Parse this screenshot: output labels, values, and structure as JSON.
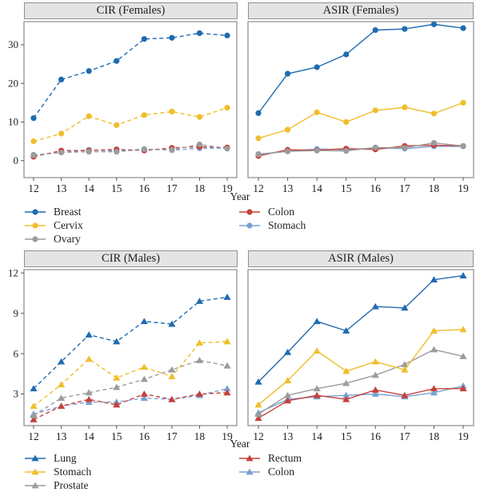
{
  "x_axis_label": "Year",
  "years": [
    12,
    13,
    14,
    15,
    16,
    17,
    18,
    19
  ],
  "colors": {
    "blue": "#1f6bb0",
    "gold": "#efbe2b",
    "gray": "#9c9c9c",
    "red": "#c5413b",
    "lightblue": "#79a1d3",
    "panel_header_bg": "#e4e4e4",
    "panel_header_border": "#919191",
    "panel_border": "#8a8a8a",
    "tick": "#555555",
    "text": "#1f1f1f"
  },
  "chart_data": [
    {
      "id": "cir_females",
      "type": "line",
      "title": "CIR (Females)",
      "line_style": "dashed",
      "marker": "circle",
      "xlabel": "Year",
      "x": [
        12,
        13,
        14,
        15,
        16,
        17,
        18,
        19
      ],
      "ylim": [
        -4.4,
        36.0
      ],
      "yticks": [
        0,
        10,
        20,
        30
      ],
      "grid": false,
      "series": [
        {
          "name": "Breast",
          "color_key": "blue",
          "values": [
            11.0,
            21.0,
            23.2,
            25.8,
            31.5,
            31.8,
            33.0,
            32.4
          ]
        },
        {
          "name": "Cervix",
          "color_key": "gold",
          "values": [
            5.0,
            7.0,
            11.5,
            9.2,
            11.8,
            12.7,
            11.3,
            13.7
          ]
        },
        {
          "name": "Ovary",
          "color_key": "gray",
          "values": [
            1.4,
            2.1,
            2.3,
            2.3,
            2.9,
            2.8,
            4.2,
            3.1
          ]
        },
        {
          "name": "Colon",
          "color_key": "red",
          "values": [
            1.0,
            2.6,
            2.6,
            2.9,
            2.6,
            3.3,
            3.6,
            3.4
          ]
        },
        {
          "name": "Stomach",
          "color_key": "lightblue",
          "values": [
            1.5,
            2.1,
            2.8,
            2.5,
            3.0,
            2.7,
            3.2,
            3.2
          ]
        }
      ]
    },
    {
      "id": "asir_females",
      "type": "line",
      "title": "ASIR (Females)",
      "line_style": "solid",
      "marker": "circle",
      "xlabel": "Year",
      "x": [
        12,
        13,
        14,
        15,
        16,
        17,
        18,
        19
      ],
      "ylim": [
        -4.4,
        36.0
      ],
      "yticks": [
        0,
        10,
        20,
        30
      ],
      "grid": false,
      "series": [
        {
          "name": "Breast",
          "color_key": "blue",
          "values": [
            12.3,
            22.5,
            24.2,
            27.5,
            33.8,
            34.1,
            35.3,
            34.3
          ]
        },
        {
          "name": "Cervix",
          "color_key": "gold",
          "values": [
            5.8,
            8.0,
            12.5,
            10.0,
            13.0,
            13.8,
            12.2,
            15.0
          ]
        },
        {
          "name": "Ovary",
          "color_key": "gray",
          "values": [
            1.6,
            2.4,
            2.6,
            2.5,
            3.4,
            3.3,
            4.6,
            3.8
          ]
        },
        {
          "name": "Colon",
          "color_key": "red",
          "values": [
            1.2,
            2.8,
            2.7,
            3.1,
            2.9,
            3.8,
            4.0,
            3.8
          ]
        },
        {
          "name": "Stomach",
          "color_key": "lightblue",
          "values": [
            1.7,
            2.4,
            3.0,
            2.8,
            3.3,
            3.1,
            3.7,
            3.7
          ]
        }
      ]
    },
    {
      "id": "cir_males",
      "type": "line",
      "title": "CIR (Males)",
      "line_style": "dashed",
      "marker": "triangle",
      "xlabel": "Year",
      "x": [
        12,
        13,
        14,
        15,
        16,
        17,
        18,
        19
      ],
      "ylim": [
        0.65,
        12.25
      ],
      "yticks": [
        3,
        6,
        9,
        12
      ],
      "grid": false,
      "series": [
        {
          "name": "Lung",
          "color_key": "blue",
          "values": [
            3.4,
            5.4,
            7.4,
            6.9,
            8.4,
            8.2,
            9.9,
            10.2
          ]
        },
        {
          "name": "Stomach",
          "color_key": "gold",
          "values": [
            2.1,
            3.7,
            5.6,
            4.2,
            5.0,
            4.3,
            6.8,
            6.9
          ]
        },
        {
          "name": "Prostate",
          "color_key": "gray",
          "values": [
            1.4,
            2.7,
            3.1,
            3.5,
            4.1,
            4.8,
            5.5,
            5.1
          ]
        },
        {
          "name": "Rectum",
          "color_key": "red",
          "values": [
            1.1,
            2.1,
            2.6,
            2.2,
            3.0,
            2.6,
            3.0,
            3.1
          ]
        },
        {
          "name": "Colon",
          "color_key": "lightblue",
          "values": [
            1.5,
            2.1,
            2.4,
            2.4,
            2.7,
            2.6,
            2.9,
            3.4
          ]
        }
      ]
    },
    {
      "id": "asir_males",
      "type": "line",
      "title": "ASIR (Males)",
      "line_style": "solid",
      "marker": "triangle",
      "xlabel": "Year",
      "x": [
        12,
        13,
        14,
        15,
        16,
        17,
        18,
        19
      ],
      "ylim": [
        0.65,
        12.25
      ],
      "yticks": [
        3,
        6,
        9,
        12
      ],
      "grid": false,
      "series": [
        {
          "name": "Lung",
          "color_key": "blue",
          "values": [
            3.9,
            6.1,
            8.4,
            7.7,
            9.5,
            9.4,
            11.5,
            11.8
          ]
        },
        {
          "name": "Stomach",
          "color_key": "gold",
          "values": [
            2.2,
            4.0,
            6.2,
            4.7,
            5.4,
            4.8,
            7.7,
            7.8
          ]
        },
        {
          "name": "Prostate",
          "color_key": "gray",
          "values": [
            1.5,
            2.9,
            3.4,
            3.8,
            4.4,
            5.2,
            6.3,
            5.8
          ]
        },
        {
          "name": "Rectum",
          "color_key": "red",
          "values": [
            1.2,
            2.5,
            2.9,
            2.6,
            3.3,
            2.9,
            3.4,
            3.4
          ]
        },
        {
          "name": "Colon",
          "color_key": "lightblue",
          "values": [
            1.6,
            2.6,
            2.8,
            2.9,
            3.0,
            2.8,
            3.1,
            3.6
          ]
        }
      ]
    }
  ],
  "legends": [
    {
      "id": "legend_females",
      "marker": "circle",
      "columns": [
        [
          {
            "label": "Breast",
            "color_key": "blue"
          },
          {
            "label": "Cervix",
            "color_key": "gold"
          },
          {
            "label": "Ovary",
            "color_key": "gray"
          }
        ],
        [
          {
            "label": "Colon",
            "color_key": "red"
          },
          {
            "label": "Stomach",
            "color_key": "lightblue"
          }
        ]
      ]
    },
    {
      "id": "legend_males",
      "marker": "triangle",
      "columns": [
        [
          {
            "label": "Lung",
            "color_key": "blue"
          },
          {
            "label": "Stomach",
            "color_key": "gold"
          },
          {
            "label": "Prostate",
            "color_key": "gray"
          }
        ],
        [
          {
            "label": "Rectum",
            "color_key": "red"
          },
          {
            "label": "Colon",
            "color_key": "lightblue"
          }
        ]
      ]
    }
  ]
}
